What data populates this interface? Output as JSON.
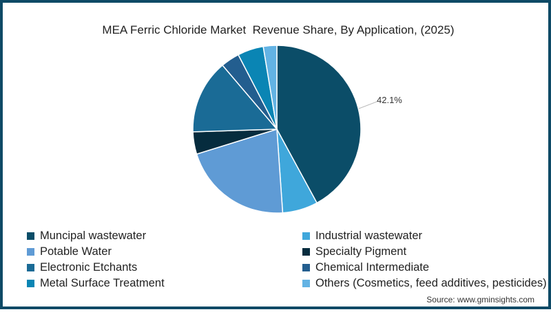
{
  "title": "MEA Ferric Chloride Market  Revenue Share, By Application, (2025)",
  "source": "Source: www.gminsights.com",
  "callout_label": "42.1%",
  "chart_data": {
    "type": "pie",
    "title": "MEA Ferric Chloride Market  Revenue Share, By Application, (2025)",
    "categories": [
      "Muncipal wastewater",
      "Industrial wastewater",
      "Potable Water",
      "Specialty Pigment",
      "Electronic Etchants",
      "Chemical Intermediate",
      "Metal Surface Treatment",
      "Others (Cosmetics, feed additives, pesticides)"
    ],
    "values": [
      42.1,
      6.8,
      21.3,
      4.3,
      14.3,
      3.6,
      5.0,
      2.6
    ],
    "colors": [
      "#0b4d68",
      "#3fa7db",
      "#5f9bd5",
      "#062c3e",
      "#1a6b96",
      "#235e8f",
      "#0a85b4",
      "#63b3e4"
    ],
    "data_labels": [
      {
        "category": "Muncipal wastewater",
        "label": "42.1%"
      }
    ],
    "legend_position": "bottom",
    "start_angle": 0,
    "direction": "clockwise"
  },
  "legend": [
    {
      "label": "Muncipal wastewater",
      "color": "#0b4d68"
    },
    {
      "label": "Industrial wastewater",
      "color": "#3fa7db"
    },
    {
      "label": "Potable Water",
      "color": "#5f9bd5"
    },
    {
      "label": "Specialty Pigment",
      "color": "#062c3e"
    },
    {
      "label": "Electronic Etchants",
      "color": "#1a6b96"
    },
    {
      "label": "Chemical Intermediate",
      "color": "#235e8f"
    },
    {
      "label": "Metal Surface Treatment",
      "color": "#0a85b4"
    },
    {
      "label": "Others (Cosmetics, feed additives, pesticides)",
      "color": "#63b3e4"
    }
  ]
}
